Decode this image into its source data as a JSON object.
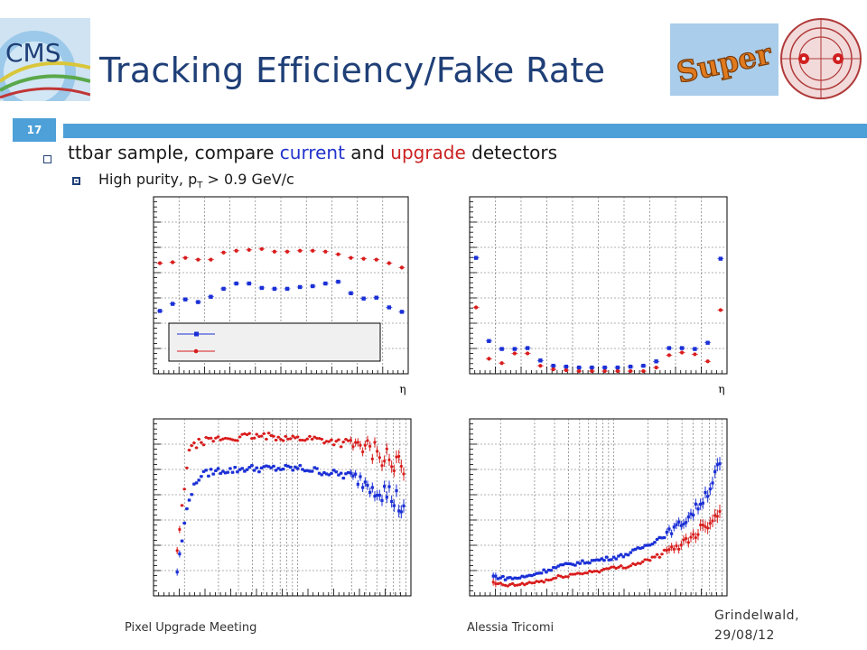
{
  "slide": {
    "title": "Tracking Efficiency/Fake Rate",
    "number": "17",
    "bullet1": {
      "prefix": "ttbar sample, compare ",
      "current": "current",
      "middle": " and ",
      "upgrade": "upgrade",
      "suffix": " detectors"
    },
    "bullet2": {
      "prefix": "High purity, p",
      "sub": "T",
      "suffix": " > 0.9 GeV/c"
    },
    "footer": {
      "left": "Pixel Upgrade Meeting",
      "center": "Alessia Tricomi",
      "right": "Grindelwald, 29/08/12"
    },
    "logos": {
      "cms": "CMS",
      "super": "Super"
    },
    "colors": {
      "accent": "#4ea0d8",
      "title": "#1f3f77",
      "current": "#1a2fd6",
      "upgrade": "#d91c1c"
    }
  },
  "chart_data": [
    {
      "type": "scatter",
      "xlabel": "η",
      "ylabel": "",
      "grid": true,
      "legend": "bottom",
      "legend_entries": [
        "",
        ""
      ],
      "series": [
        {
          "name": "",
          "color": "#1a2fd6",
          "marker": "square",
          "y": [
            0.355,
            0.395,
            0.42,
            0.405,
            0.435,
            0.48,
            0.51,
            0.51,
            0.485,
            0.48,
            0.48,
            0.49,
            0.495,
            0.51,
            0.52,
            0.455,
            0.425,
            0.43,
            0.375,
            0.35
          ]
        },
        {
          "name": "",
          "color": "#d91c1c",
          "marker": "circle",
          "y": [
            0.625,
            0.63,
            0.655,
            0.645,
            0.645,
            0.685,
            0.695,
            0.7,
            0.705,
            0.69,
            0.69,
            0.695,
            0.695,
            0.69,
            0.675,
            0.655,
            0.65,
            0.645,
            0.625,
            0.6
          ]
        }
      ]
    },
    {
      "type": "scatter",
      "xlabel": "η",
      "ylabel": "",
      "grid": true,
      "series": [
        {
          "name": "",
          "color": "#1a2fd6",
          "marker": "square",
          "y": [
            0.655,
            0.185,
            0.14,
            0.14,
            0.145,
            0.075,
            0.045,
            0.04,
            0.035,
            0.035,
            0.035,
            0.035,
            0.04,
            0.045,
            0.07,
            0.145,
            0.145,
            0.14,
            0.175,
            0.65
          ]
        },
        {
          "name": "",
          "color": "#d91c1c",
          "marker": "circle",
          "y": [
            0.375,
            0.085,
            0.06,
            0.115,
            0.115,
            0.045,
            0.025,
            0.02,
            0.015,
            0.015,
            0.015,
            0.015,
            0.015,
            0.015,
            0.035,
            0.105,
            0.12,
            0.11,
            0.07,
            0.36
          ]
        }
      ]
    },
    {
      "type": "scatter",
      "xlabel": "",
      "ylabel": "",
      "grid": true,
      "log_x": true,
      "series": [
        {
          "name": "",
          "color": "#1a2fd6",
          "marker": "square",
          "noise": 0.02,
          "y": [
            0.14,
            0.55,
            0.68,
            0.7,
            0.71,
            0.71,
            0.72,
            0.72,
            0.72,
            0.72,
            0.72,
            0.72,
            0.71,
            0.7,
            0.69,
            0.68,
            0.66,
            0.63,
            0.6,
            0.56,
            0.5
          ]
        },
        {
          "name": "",
          "color": "#d91c1c",
          "marker": "circle",
          "noise": 0.02,
          "y": [
            0.25,
            0.82,
            0.87,
            0.88,
            0.89,
            0.89,
            0.9,
            0.9,
            0.9,
            0.9,
            0.89,
            0.89,
            0.89,
            0.88,
            0.87,
            0.86,
            0.85,
            0.83,
            0.8,
            0.76,
            0.7
          ]
        }
      ]
    },
    {
      "type": "scatter",
      "xlabel": "",
      "ylabel": "",
      "grid": true,
      "log_x": true,
      "series": [
        {
          "name": "",
          "color": "#1a2fd6",
          "marker": "square",
          "noise": 0.01,
          "y": [
            0.11,
            0.1,
            0.1,
            0.11,
            0.13,
            0.15,
            0.17,
            0.18,
            0.19,
            0.2,
            0.21,
            0.22,
            0.24,
            0.27,
            0.3,
            0.34,
            0.38,
            0.43,
            0.5,
            0.6,
            0.74
          ]
        },
        {
          "name": "",
          "color": "#d91c1c",
          "marker": "circle",
          "noise": 0.01,
          "y": [
            0.07,
            0.06,
            0.06,
            0.07,
            0.08,
            0.09,
            0.11,
            0.12,
            0.13,
            0.14,
            0.15,
            0.16,
            0.17,
            0.19,
            0.21,
            0.24,
            0.27,
            0.31,
            0.36,
            0.42,
            0.48
          ]
        }
      ]
    }
  ]
}
